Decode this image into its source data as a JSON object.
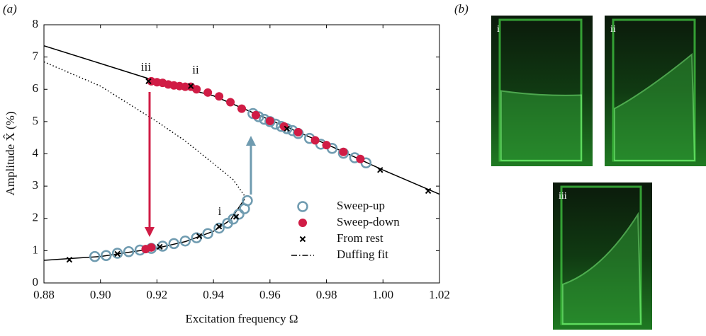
{
  "chart_data": {
    "type": "scatter",
    "panel_label": "(a)",
    "xlabel": "Excitation frequency Ω",
    "ylabel": "Amplitude X̂  (%)",
    "xlim": [
      0.88,
      1.02
    ],
    "ylim": [
      0,
      8
    ],
    "xticks": [
      0.88,
      {
        "value": 0.9,
        "label": "0.90"
      },
      0.92,
      0.94,
      0.96,
      0.98,
      {
        "value": 1.0,
        "label": "1.00"
      },
      1.02
    ],
    "yticks": [
      0,
      1,
      2,
      3,
      4,
      5,
      6,
      7,
      8
    ],
    "legend": "lower right",
    "series": [
      {
        "name": "Sweep-up",
        "marker": "open-circle",
        "color": "#6f9bb0",
        "x": [
          0.898,
          0.902,
          0.906,
          0.91,
          0.914,
          0.918,
          0.922,
          0.926,
          0.93,
          0.934,
          0.938,
          0.942,
          0.945,
          0.947,
          0.949,
          0.951,
          0.952,
          0.954,
          0.956,
          0.958,
          0.96,
          0.962,
          0.964,
          0.966,
          0.968,
          0.97,
          0.974,
          0.978,
          0.982,
          0.986,
          0.99,
          0.994
        ],
        "values": [
          0.82,
          0.85,
          0.92,
          0.97,
          1.02,
          1.07,
          1.14,
          1.22,
          1.3,
          1.4,
          1.53,
          1.7,
          1.85,
          1.98,
          2.13,
          2.3,
          2.55,
          5.25,
          5.15,
          5.07,
          5.0,
          4.92,
          4.85,
          4.78,
          4.72,
          4.63,
          4.48,
          4.3,
          4.17,
          4.02,
          3.88,
          3.72
        ]
      },
      {
        "name": "Sweep-down",
        "marker": "filled-circle",
        "color": "#d01c45",
        "x": [
          0.918,
          0.92,
          0.922,
          0.924,
          0.926,
          0.928,
          0.93,
          0.932,
          0.934,
          0.938,
          0.942,
          0.946,
          0.95,
          0.955,
          0.96,
          0.965,
          0.97,
          0.976,
          0.98,
          0.986,
          0.992,
          0.916,
          0.918
        ],
        "values": [
          6.25,
          6.22,
          6.2,
          6.15,
          6.12,
          6.1,
          6.08,
          6.08,
          6.0,
          5.9,
          5.78,
          5.6,
          5.4,
          5.2,
          5.02,
          4.85,
          4.67,
          4.42,
          4.27,
          4.06,
          3.84,
          1.05,
          1.1
        ]
      },
      {
        "name": "From rest",
        "marker": "cross",
        "color": "#000000",
        "x": [
          0.889,
          0.906,
          0.921,
          0.935,
          0.942,
          0.948,
          0.917,
          0.932,
          0.966,
          0.999,
          1.016
        ],
        "values": [
          0.72,
          0.9,
          1.12,
          1.45,
          1.75,
          2.05,
          6.25,
          6.1,
          4.78,
          3.5,
          2.85
        ]
      },
      {
        "name": "Duffing fit",
        "marker": "line",
        "color": "#000000",
        "branches": [
          {
            "dash": "solid",
            "x": [
              0.88,
              0.9,
              0.92,
              0.94,
              0.96,
              0.98,
              1.0,
              1.02
            ],
            "values": [
              7.35,
              6.8,
              6.25,
              5.8,
              5.05,
              4.3,
              3.5,
              2.75
            ]
          },
          {
            "dash": "dotted",
            "x": [
              0.88,
              0.9,
              0.92,
              0.93,
              0.94,
              0.947,
              0.951
            ],
            "values": [
              6.85,
              6.1,
              5.0,
              4.4,
              3.7,
              3.2,
              2.7
            ]
          },
          {
            "dash": "solid",
            "x": [
              0.88,
              0.9,
              0.92,
              0.93,
              0.94,
              0.946,
              0.951
            ],
            "values": [
              0.7,
              0.82,
              1.08,
              1.28,
              1.6,
              1.95,
              2.6
            ]
          }
        ]
      }
    ],
    "annotations": [
      "iii",
      "ii",
      "i"
    ]
  },
  "photos": {
    "panel_label": "(b)",
    "labels": [
      "i",
      "ii",
      "iii"
    ]
  }
}
